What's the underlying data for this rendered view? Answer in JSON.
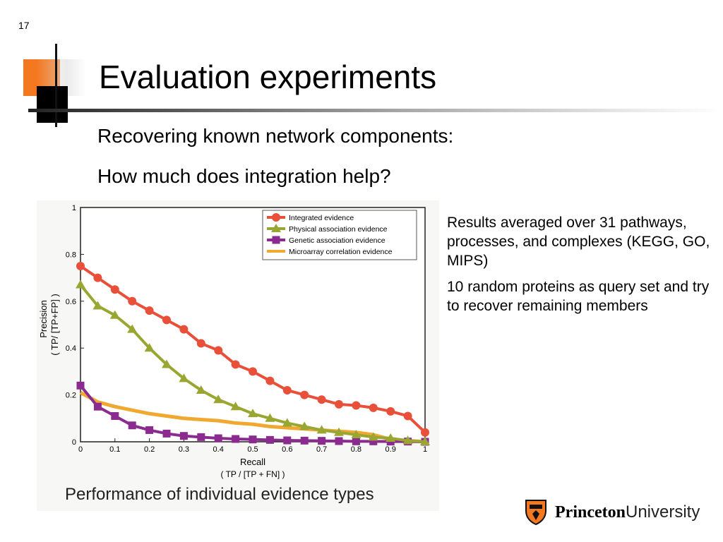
{
  "slide": {
    "number": "17",
    "title": "Evaluation experiments",
    "subtitle_1": "Recovering known network components:",
    "subtitle_2": "How much does integration help?"
  },
  "notes": [
    "Results averaged over 31 pathways, processes, and complexes (KEGG, GO, MIPS)",
    "10 random proteins as query set and try to recover remaining members"
  ],
  "logo": {
    "bold": "Princeton",
    "light": "University",
    "icon": "princeton-shield-icon"
  },
  "chart_data": {
    "type": "line",
    "caption": "Performance of individual evidence types",
    "xlabel": "Recall",
    "xlabel_sub": "( TP / [TP + FN] )",
    "ylabel": "Precision",
    "ylabel_sub": "( TP/ [TP+FP] )",
    "xlim": [
      0,
      1
    ],
    "ylim": [
      0,
      1
    ],
    "xticks": [
      "0",
      "0.1",
      "0.2",
      "0.3",
      "0.4",
      "0.5",
      "0.6",
      "0.7",
      "0.8",
      "0.9",
      "1"
    ],
    "yticks": [
      "0",
      "0.2",
      "0.4",
      "0.6",
      "0.8",
      "1"
    ],
    "legend_position": "top-right",
    "series": [
      {
        "name": "Integrated evidence",
        "color": "#e8503a",
        "marker": "circle",
        "x": [
          0,
          0.05,
          0.1,
          0.15,
          0.2,
          0.25,
          0.3,
          0.35,
          0.4,
          0.45,
          0.5,
          0.55,
          0.6,
          0.65,
          0.7,
          0.75,
          0.8,
          0.85,
          0.9,
          0.95,
          1.0
        ],
        "y": [
          0.75,
          0.7,
          0.65,
          0.6,
          0.56,
          0.52,
          0.48,
          0.42,
          0.39,
          0.33,
          0.3,
          0.26,
          0.22,
          0.2,
          0.18,
          0.16,
          0.155,
          0.145,
          0.13,
          0.11,
          0.04
        ]
      },
      {
        "name": "Physical association evidence",
        "color": "#9aa632",
        "marker": "triangle",
        "x": [
          0,
          0.05,
          0.1,
          0.15,
          0.2,
          0.25,
          0.3,
          0.35,
          0.4,
          0.45,
          0.5,
          0.55,
          0.6,
          0.65,
          0.7,
          0.75,
          0.8,
          0.85,
          0.9,
          0.95,
          1.0
        ],
        "y": [
          0.67,
          0.58,
          0.54,
          0.48,
          0.4,
          0.33,
          0.27,
          0.22,
          0.18,
          0.15,
          0.12,
          0.1,
          0.08,
          0.065,
          0.05,
          0.04,
          0.03,
          0.02,
          0.015,
          0.005,
          0.0
        ]
      },
      {
        "name": "Genetic association evidence",
        "color": "#8b2b8f",
        "marker": "square",
        "x": [
          0,
          0.05,
          0.1,
          0.15,
          0.2,
          0.25,
          0.3,
          0.35,
          0.4,
          0.45,
          0.5,
          0.55,
          0.6,
          0.65,
          0.7,
          0.75,
          0.8,
          0.85,
          0.9,
          0.95,
          1.0
        ],
        "y": [
          0.24,
          0.15,
          0.11,
          0.07,
          0.05,
          0.035,
          0.025,
          0.02,
          0.015,
          0.012,
          0.01,
          0.008,
          0.006,
          0.005,
          0.004,
          0.003,
          0.002,
          0.002,
          0.001,
          0.001,
          0.0
        ]
      },
      {
        "name": "Microarray correlation evidence",
        "color": "#f0a830",
        "marker": "dot",
        "x": [
          0,
          0.05,
          0.1,
          0.15,
          0.2,
          0.25,
          0.3,
          0.35,
          0.4,
          0.45,
          0.5,
          0.55,
          0.6,
          0.65,
          0.7,
          0.75,
          0.8,
          0.85,
          0.9,
          0.95,
          1.0
        ],
        "y": [
          0.21,
          0.17,
          0.15,
          0.135,
          0.12,
          0.11,
          0.1,
          0.095,
          0.09,
          0.08,
          0.075,
          0.065,
          0.06,
          0.055,
          0.05,
          0.045,
          0.04,
          0.03,
          0.01,
          0.005,
          0.0
        ]
      }
    ]
  }
}
